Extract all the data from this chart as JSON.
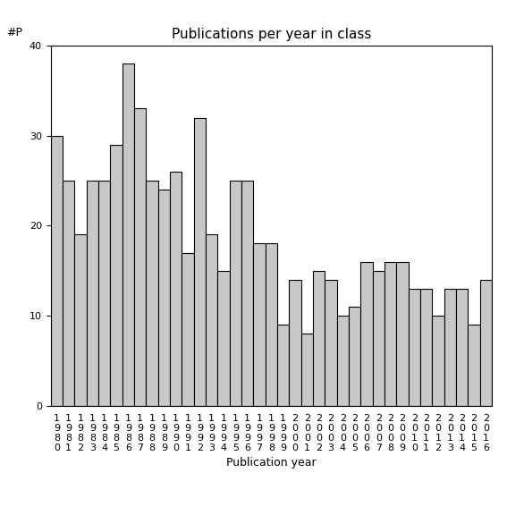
{
  "title": "Publications per year in class",
  "xlabel": "Publication year",
  "ylabel": "#P",
  "bar_color": "#c8c8c8",
  "edge_color": "#000000",
  "background_color": "#ffffff",
  "ylim": [
    0,
    40
  ],
  "yticks": [
    0,
    10,
    20,
    30,
    40
  ],
  "years": [
    1980,
    1981,
    1982,
    1983,
    1984,
    1985,
    1986,
    1987,
    1988,
    1989,
    1990,
    1991,
    1992,
    1993,
    1994,
    1995,
    1996,
    1997,
    1998,
    1999,
    2000,
    2001,
    2002,
    2003,
    2004,
    2005,
    2006,
    2007,
    2008,
    2009,
    2010,
    2011,
    2012,
    2013,
    2014,
    2015,
    2016
  ],
  "values": [
    30,
    25,
    19,
    25,
    25,
    29,
    38,
    33,
    25,
    24,
    26,
    17,
    32,
    19,
    15,
    25,
    25,
    18,
    18,
    9,
    14,
    8,
    15,
    14,
    10,
    11,
    16,
    15,
    16,
    16,
    13,
    13,
    10,
    13,
    13,
    9,
    14
  ],
  "title_fontsize": 11,
  "axis_fontsize": 9,
  "tick_fontsize": 8
}
